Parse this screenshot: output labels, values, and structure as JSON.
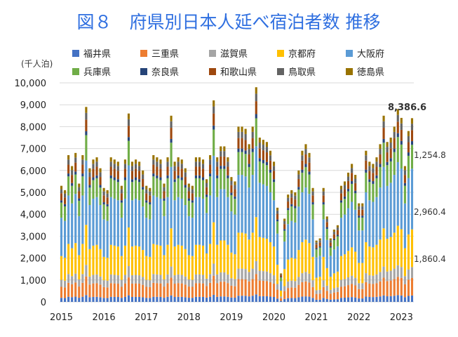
{
  "chart_data": {
    "type": "bar",
    "stacked": true,
    "title": "図８　府県別日本人延べ宿泊者数 推移",
    "ylabel": "(千人泊)",
    "ylim": [
      0,
      10000
    ],
    "yticks": [
      "0",
      "1,000",
      "2,000",
      "3,000",
      "4,000",
      "5,000",
      "6,000",
      "7,000",
      "8,000",
      "9,000",
      "10,000"
    ],
    "xticks": [
      "2015",
      "2016",
      "2017",
      "2018",
      "2019",
      "2020",
      "2021",
      "2022",
      "2023"
    ],
    "x_start_month": "2015-01",
    "x_end_month": "2023-04",
    "legend": [
      "福井県",
      "三重県",
      "滋賀県",
      "京都府",
      "大阪府",
      "兵庫県",
      "奈良県",
      "和歌山県",
      "鳥取県",
      "徳島県"
    ],
    "colors": [
      "#4472C4",
      "#ED7D31",
      "#A5A5A5",
      "#FFC000",
      "#5B9BD5",
      "#70AD47",
      "#264478",
      "#9E480E",
      "#636363",
      "#997300"
    ],
    "shares": [
      0.035,
      0.095,
      0.06,
      0.205,
      0.33,
      0.13,
      0.02,
      0.06,
      0.035,
      0.03
    ],
    "totals": [
      5300,
      5100,
      6700,
      6200,
      6800,
      5400,
      6700,
      8900,
      6100,
      6500,
      6600,
      6100,
      5200,
      5100,
      6600,
      6500,
      6400,
      5300,
      6500,
      8600,
      6400,
      6500,
      6400,
      6000,
      5300,
      5200,
      6700,
      6600,
      6500,
      5400,
      6600,
      8500,
      6400,
      6600,
      6500,
      6100,
      5400,
      5300,
      6600,
      6600,
      6500,
      5600,
      6700,
      9200,
      6600,
      7100,
      7100,
      6600,
      5700,
      5500,
      8000,
      8000,
      7900,
      7200,
      8000,
      9800,
      7500,
      7400,
      7300,
      6900,
      6400,
      4300,
      1300,
      3800,
      4900,
      5100,
      5000,
      6000,
      6900,
      7200,
      6800,
      5200,
      2800,
      2900,
      5200,
      3900,
      2900,
      3300,
      3500,
      5300,
      5500,
      5900,
      6300,
      5800,
      4500,
      4500,
      6900,
      6400,
      6300,
      6600,
      7200,
      8500,
      7300,
      7500,
      8000,
      8800,
      8400,
      6200,
      7800,
      8386.6
    ],
    "annotations": [
      "8,386.6",
      "1,254.8",
      "2,960.4",
      "1,860.4"
    ]
  }
}
